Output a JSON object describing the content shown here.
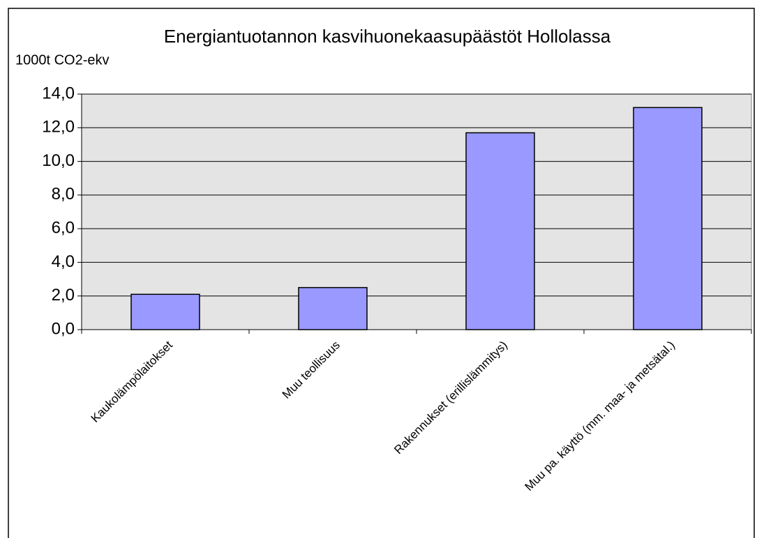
{
  "chart_data": {
    "type": "bar",
    "title": "Energiantuotannon kasvihuonekaasupäästöt Hollolassa",
    "y_label": "1000t CO2-ekv",
    "categories": [
      "Kaukolämpölaitokset",
      "Muu teollisuus",
      "Rakennukset (erillislämmitys)",
      "Muu pa. käyttö (mm. maa- ja metsätal.)"
    ],
    "values": [
      2.1,
      2.5,
      11.7,
      13.2
    ],
    "color": "#9999ff",
    "ylim": [
      0,
      14
    ],
    "yticks": [
      {
        "value": 0,
        "label": "0,0"
      },
      {
        "value": 2,
        "label": "2,0"
      },
      {
        "value": 4,
        "label": "4,0"
      },
      {
        "value": 6,
        "label": "6,0"
      },
      {
        "value": 8,
        "label": "8,0"
      },
      {
        "value": 10,
        "label": "10,0"
      },
      {
        "value": 12,
        "label": "12,0"
      },
      {
        "value": 14,
        "label": "14,0"
      }
    ],
    "grid": true
  }
}
